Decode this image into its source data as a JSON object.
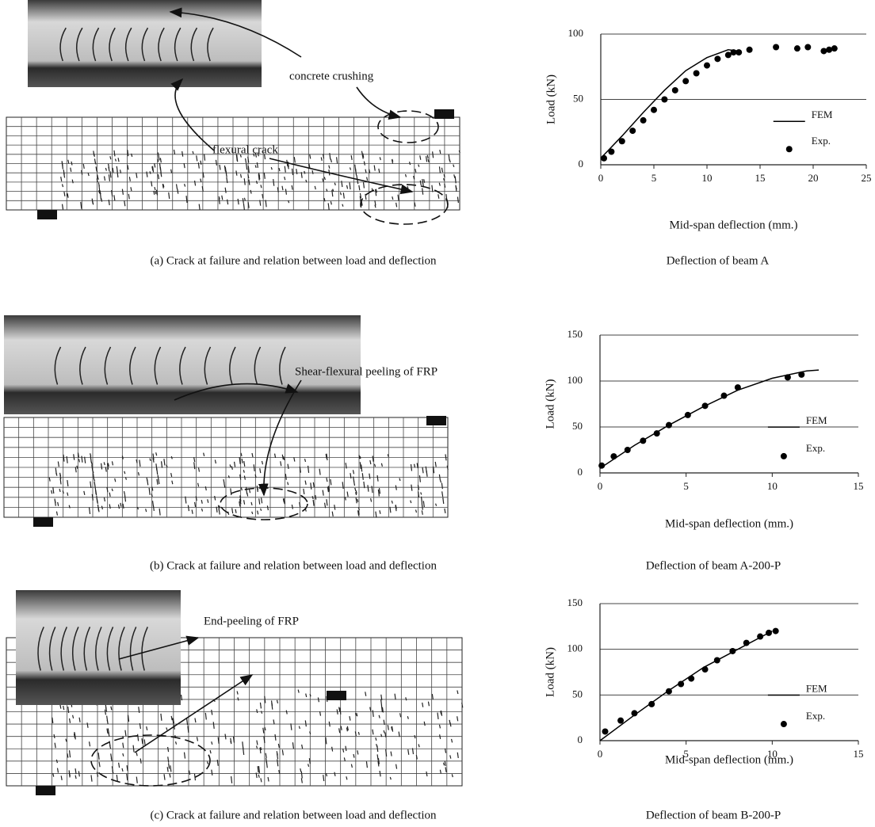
{
  "panels": [
    {
      "caption": "(a) Crack at failure and relation between load and deflection",
      "annotations": [
        "concrete crushing",
        "flexural crack"
      ]
    },
    {
      "caption": "(b) Crack at failure and relation between load and deflection",
      "annotations": [
        "Shear-flexural peeling of FRP"
      ]
    },
    {
      "caption": "(c) Crack at failure and relation between load and deflection",
      "annotations": [
        "End-peeling of FRP"
      ]
    }
  ],
  "chart_data": [
    {
      "type": "line",
      "title": "Deflection of beam A",
      "xlabel": "Mid-span deflection (mm.)",
      "ylabel": "Load (kN)",
      "xlim": [
        0,
        25
      ],
      "xticks": [
        0,
        5,
        10,
        15,
        20,
        25
      ],
      "ylim": [
        0,
        100
      ],
      "yticks": [
        0,
        50,
        100
      ],
      "grid": true,
      "legend": "right",
      "series": [
        {
          "name": "FEM",
          "style": "line",
          "color": "#000000",
          "x": [
            0,
            2,
            4,
            6,
            8,
            10,
            12,
            13
          ],
          "values": [
            5,
            22,
            40,
            57,
            72,
            82,
            88,
            87
          ]
        },
        {
          "name": "Exp.",
          "style": "points",
          "color": "#000000",
          "x": [
            0.3,
            1,
            2,
            3,
            4,
            5,
            6,
            7,
            8,
            9,
            10,
            11,
            12,
            12.5,
            13,
            14,
            16.5,
            18.5,
            19.5,
            21,
            21.5,
            22
          ],
          "values": [
            5,
            10,
            18,
            26,
            34,
            42,
            50,
            57,
            64,
            70,
            76,
            81,
            84,
            86,
            86,
            88,
            90,
            89,
            90,
            87,
            88,
            89
          ]
        }
      ]
    },
    {
      "type": "line",
      "title": "Deflection of beam A-200-P",
      "xlabel": "Mid-span deflection (mm.)",
      "ylabel": "Load (kN)",
      "xlim": [
        0,
        15
      ],
      "xticks": [
        0,
        5,
        10,
        15
      ],
      "ylim": [
        0,
        150
      ],
      "yticks": [
        0,
        50,
        100,
        150
      ],
      "grid": true,
      "legend": "right",
      "series": [
        {
          "name": "FEM",
          "style": "line",
          "color": "#000000",
          "x": [
            0,
            2,
            4,
            6,
            8,
            10,
            12,
            12.7
          ],
          "values": [
            5,
            30,
            52,
            72,
            90,
            103,
            111,
            112
          ]
        },
        {
          "name": "Exp.",
          "style": "points",
          "color": "#000000",
          "x": [
            0.1,
            0.8,
            1.6,
            2.5,
            3.3,
            4,
            5.1,
            6.1,
            7.2,
            8,
            10.9,
            11.7
          ],
          "values": [
            8,
            18,
            25,
            35,
            43,
            52,
            63,
            73,
            84,
            93,
            104,
            107
          ]
        }
      ]
    },
    {
      "type": "line",
      "title": "Deflection of beam B-200-P",
      "xlabel": "Mid-span deflection (mm.)",
      "ylabel": "Load (kN)",
      "xlim": [
        0,
        15
      ],
      "xticks": [
        0,
        5,
        10,
        15
      ],
      "ylim": [
        0,
        150
      ],
      "yticks": [
        0,
        50,
        100,
        150
      ],
      "grid": true,
      "legend": "right",
      "series": [
        {
          "name": "FEM",
          "style": "line",
          "color": "#000000",
          "x": [
            0,
            2,
            4,
            6,
            8,
            10
          ],
          "values": [
            0,
            28,
            55,
            80,
            100,
            120
          ]
        },
        {
          "name": "Exp.",
          "style": "points",
          "color": "#000000",
          "x": [
            0.3,
            1.2,
            2,
            3,
            4,
            4.7,
            5.3,
            6.1,
            6.8,
            7.7,
            8.5,
            9.3,
            9.8,
            10.2
          ],
          "values": [
            10,
            22,
            30,
            40,
            54,
            62,
            68,
            78,
            88,
            98,
            107,
            114,
            118,
            120
          ]
        }
      ]
    }
  ]
}
